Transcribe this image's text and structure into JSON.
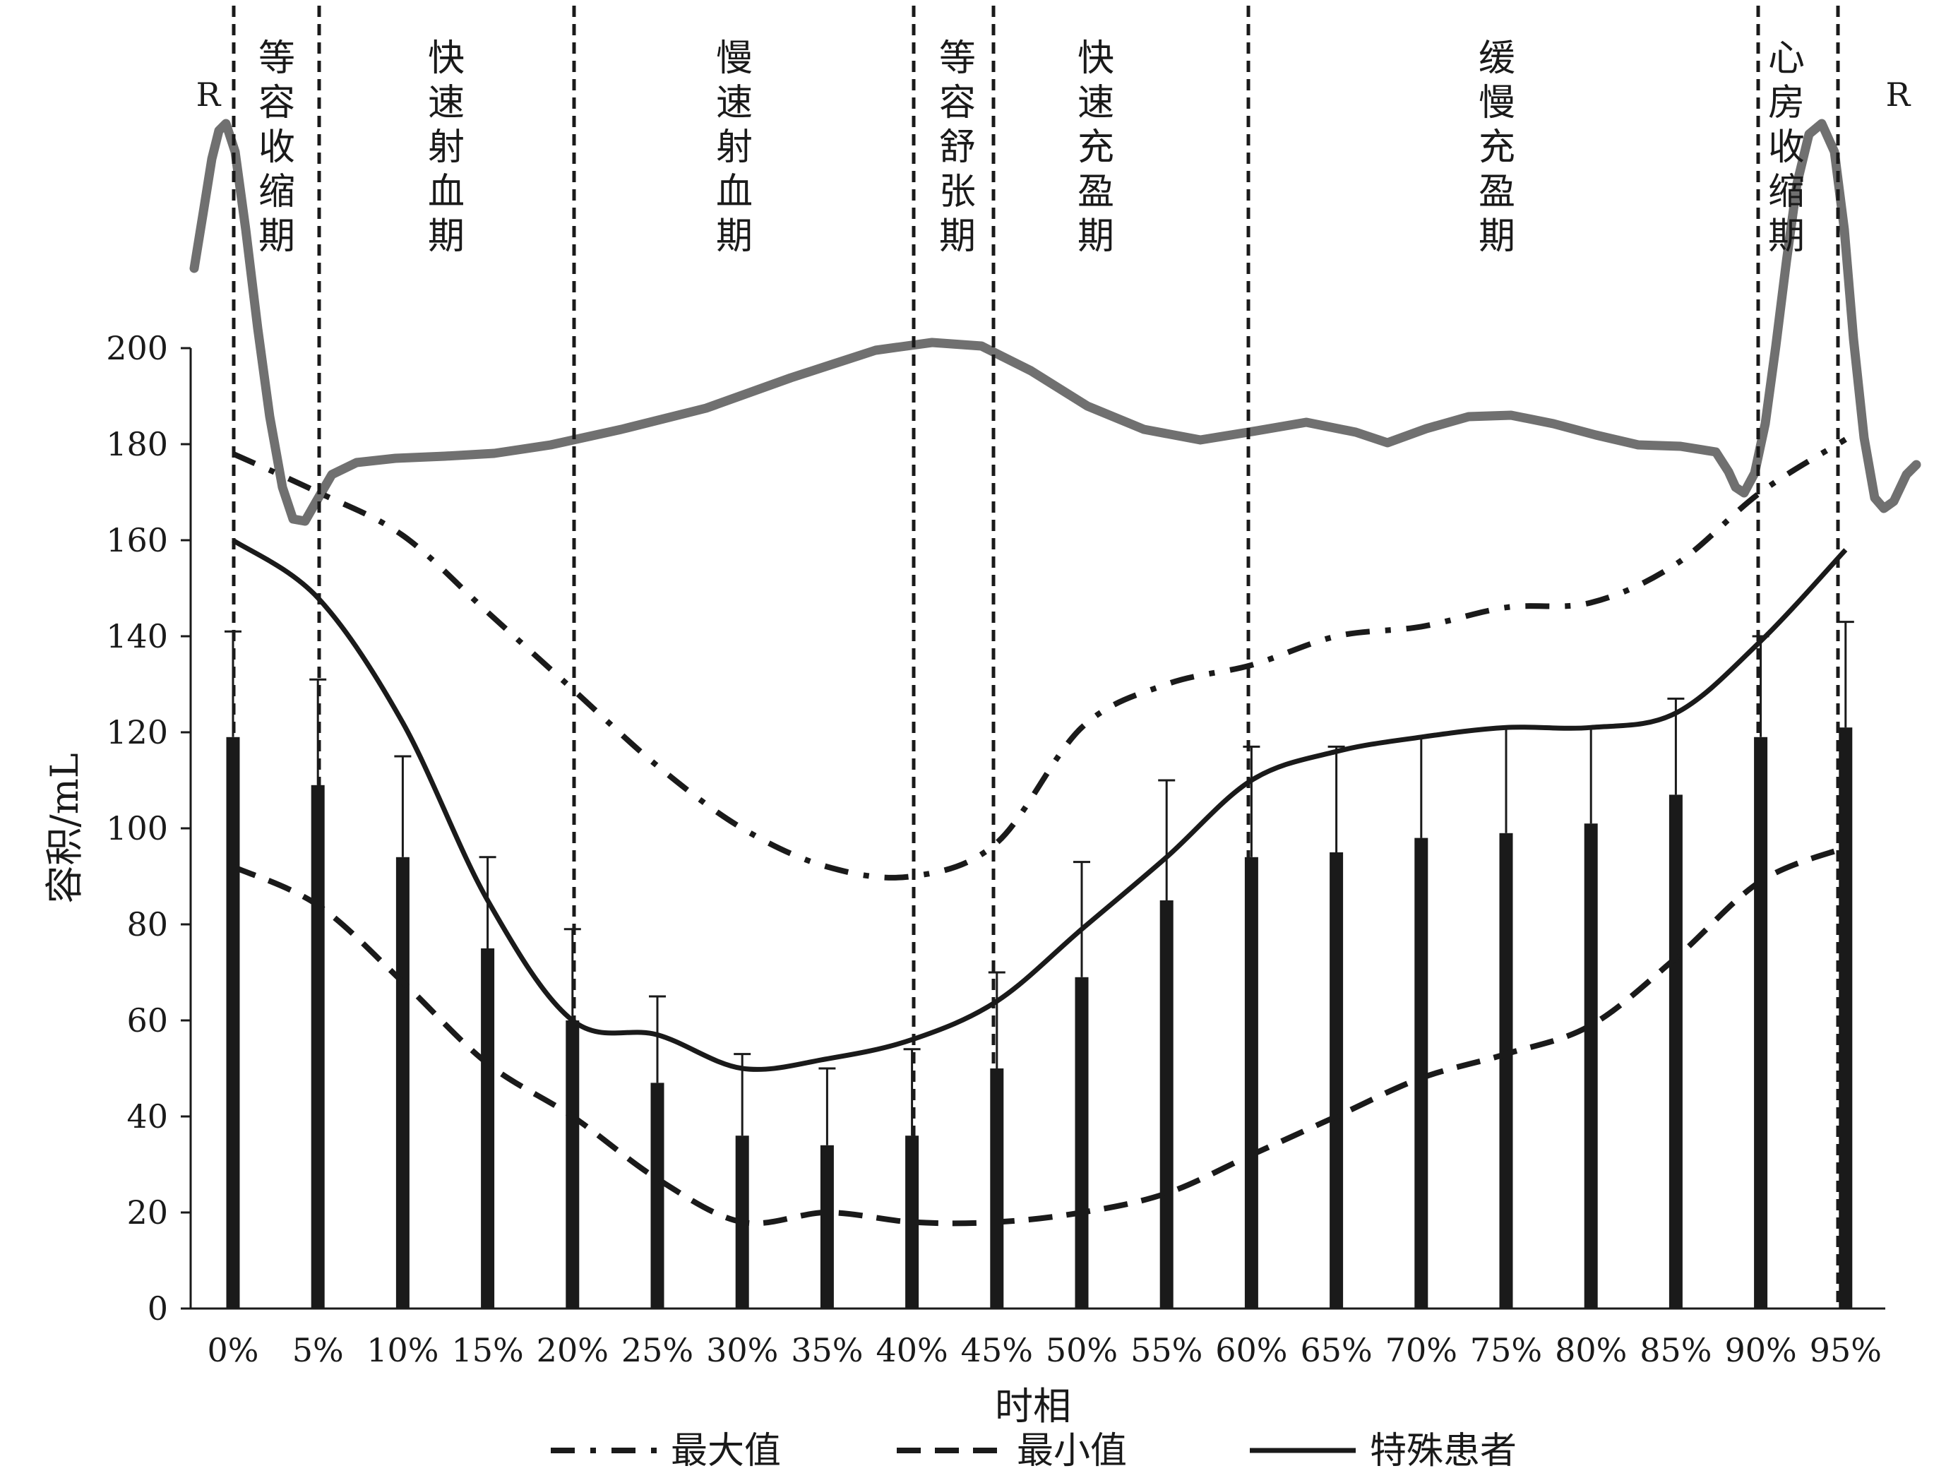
{
  "chart_data": {
    "type": "bar",
    "xlabel": "时相",
    "ylabel": "容积/mL",
    "ylim": [
      0,
      200
    ],
    "yticks": [
      "0",
      "20",
      "40",
      "60",
      "80",
      "100",
      "120",
      "140",
      "160",
      "180",
      "200"
    ],
    "categories": [
      "0%",
      "5%",
      "10%",
      "15%",
      "20%",
      "25%",
      "30%",
      "35%",
      "40%",
      "45%",
      "50%",
      "55%",
      "60%",
      "65%",
      "70%",
      "75%",
      "80%",
      "85%",
      "90%",
      "95%"
    ],
    "bars": {
      "values": [
        119,
        109,
        94,
        75,
        60,
        47,
        36,
        34,
        36,
        50,
        69,
        85,
        94,
        95,
        98,
        99,
        101,
        107,
        119,
        121
      ],
      "error_upper": [
        141,
        131,
        115,
        94,
        79,
        65,
        53,
        50,
        54,
        70,
        93,
        110,
        117,
        117,
        119,
        121,
        121,
        127,
        140,
        143
      ]
    },
    "series": [
      {
        "name": "最大值",
        "style": "dash-dot",
        "values": [
          178,
          170,
          161,
          145,
          129,
          113,
          100,
          92,
          90,
          97,
          121,
          130,
          134,
          140,
          142,
          146,
          147,
          155,
          170,
          181
        ]
      },
      {
        "name": "最小值",
        "style": "dashed",
        "values": [
          92,
          84,
          68,
          51,
          40,
          27,
          18,
          20,
          18,
          18,
          20,
          24,
          32,
          40,
          48,
          53,
          59,
          73,
          89,
          96
        ]
      },
      {
        "name": "特殊患者",
        "style": "solid",
        "values": [
          160,
          148,
          122,
          85,
          60,
          57,
          50,
          52,
          56,
          64,
          79,
          94,
          110,
          116,
          119,
          121,
          121,
          124,
          139,
          158
        ]
      }
    ],
    "phases": [
      {
        "label": "等容收缩期"
      },
      {
        "label": "快速射血期"
      },
      {
        "label": "慢速射血期"
      },
      {
        "label": "等容舒张期"
      },
      {
        "label": "快速充盈期"
      },
      {
        "label": "缓慢充盈期"
      },
      {
        "label": "心房收缩期"
      }
    ],
    "ecg_labels": [
      "R",
      "R"
    ],
    "colors": {
      "bars": "#1a1a1a",
      "lines": "#1a1a1a",
      "ecg": "#707070"
    },
    "grid": false,
    "legend": "bottom"
  }
}
